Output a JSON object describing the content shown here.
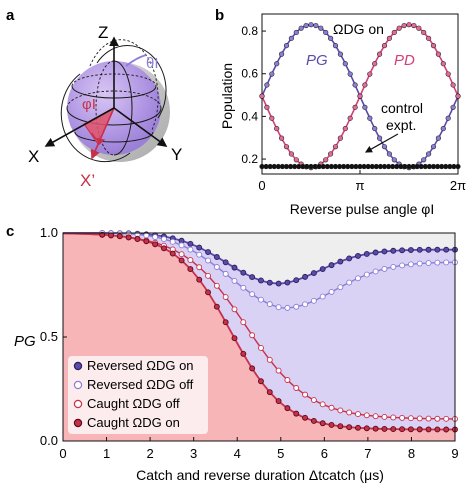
{
  "colors": {
    "violet": "#5b4aa8",
    "violet_light": "#8a7ed8",
    "red": "#c8304a",
    "red_light": "#e05a6a",
    "magenta": "#d0407a",
    "black": "#111111",
    "pink_fill": "#f7b5b8",
    "lavender_fill": "#d9d2f5",
    "sphere": "#b69be6",
    "sphere_dark": "#9a7ed8"
  },
  "panel_a": {
    "label": "a",
    "axis_z": "Z",
    "axis_x": "X",
    "axis_y": "Y",
    "axis_xp": "X’",
    "theta_label": "θI",
    "phi_label": "φI"
  },
  "panel_b": {
    "label": "b",
    "annotation_top": "ΩDG on",
    "label_pg": "PG",
    "label_pd": "PD",
    "annotation_control_1": "control",
    "annotation_control_2": "expt."
  },
  "panel_c": {
    "label": "c",
    "legend": [
      {
        "text": "Reversed ΩDG on",
        "style": "filled-violet"
      },
      {
        "text": "Reversed ΩDG off",
        "style": "open-violet"
      },
      {
        "text": "Caught    ΩDG off",
        "style": "open-red"
      },
      {
        "text": "Caught    ΩDG on",
        "style": "filled-red"
      }
    ]
  },
  "chart_data": [
    {
      "panel": "b",
      "type": "scatter",
      "xlabel": "Reverse pulse angle φI",
      "ylabel": "Population",
      "xlim": [
        0,
        6.2832
      ],
      "ylim": [
        0.13,
        0.88
      ],
      "xticks": [
        {
          "v": 0,
          "t": "0"
        },
        {
          "v": 3.1416,
          "t": "π"
        },
        {
          "v": 6.2832,
          "t": "2π"
        }
      ],
      "yticks": [
        0.2,
        0.4,
        0.6,
        0.8
      ],
      "series": [
        {
          "name": "PG",
          "color": "#5b4aa8",
          "model": "0.495 + 0.335*sin(x)"
        },
        {
          "name": "PD",
          "color": "#d0407a",
          "model": "0.495 - 0.335*sin(x)"
        },
        {
          "name": "control expt.",
          "color": "#111111",
          "model": "0.165"
        }
      ]
    },
    {
      "panel": "c",
      "type": "scatter",
      "xlabel": "Catch and reverse duration Δtcatch (μs)",
      "ylabel": "PG",
      "xlim": [
        0,
        9
      ],
      "ylim": [
        0,
        1
      ],
      "xticks": [
        0,
        1,
        2,
        3,
        4,
        5,
        6,
        7,
        8,
        9
      ],
      "yticks": [
        {
          "v": 0.0,
          "t": "0.0"
        },
        {
          "v": 0.5,
          "t": "0.5"
        },
        {
          "v": 1.0,
          "t": "1.0"
        }
      ],
      "series": [
        {
          "name": "Reversed ΩDG on",
          "x": [
            0.9,
            2.0,
            3.0,
            3.5,
            4.0,
            4.5,
            5.0,
            6.0,
            7.0,
            8.0,
            9.0
          ],
          "y": [
            1.0,
            0.98,
            0.94,
            0.9,
            0.86,
            0.83,
            0.83,
            0.87,
            0.9,
            0.91,
            0.92
          ]
        },
        {
          "name": "Reversed ΩDG off",
          "x": [
            0.9,
            2.0,
            3.0,
            3.5,
            4.0,
            4.5,
            5.0,
            6.0,
            7.0,
            8.0,
            9.0
          ],
          "y": [
            1.0,
            0.97,
            0.91,
            0.86,
            0.81,
            0.78,
            0.77,
            0.8,
            0.83,
            0.85,
            0.86
          ]
        },
        {
          "name": "Caught ΩDG off",
          "x": [
            0.9,
            2.0,
            3.0,
            3.5,
            4.0,
            4.5,
            5.0,
            5.5,
            6.0,
            7.0,
            8.0,
            9.0
          ],
          "y": [
            1.0,
            0.95,
            0.8,
            0.68,
            0.56,
            0.44,
            0.35,
            0.28,
            0.22,
            0.16,
            0.13,
            0.12
          ]
        },
        {
          "name": "Caught ΩDG on",
          "x": [
            0.9,
            2.0,
            3.0,
            3.5,
            4.0,
            4.5,
            5.0,
            5.5,
            6.0,
            7.0,
            8.0,
            9.0
          ],
          "y": [
            1.0,
            0.95,
            0.77,
            0.62,
            0.47,
            0.35,
            0.24,
            0.17,
            0.12,
            0.08,
            0.07,
            0.06
          ]
        }
      ]
    }
  ]
}
